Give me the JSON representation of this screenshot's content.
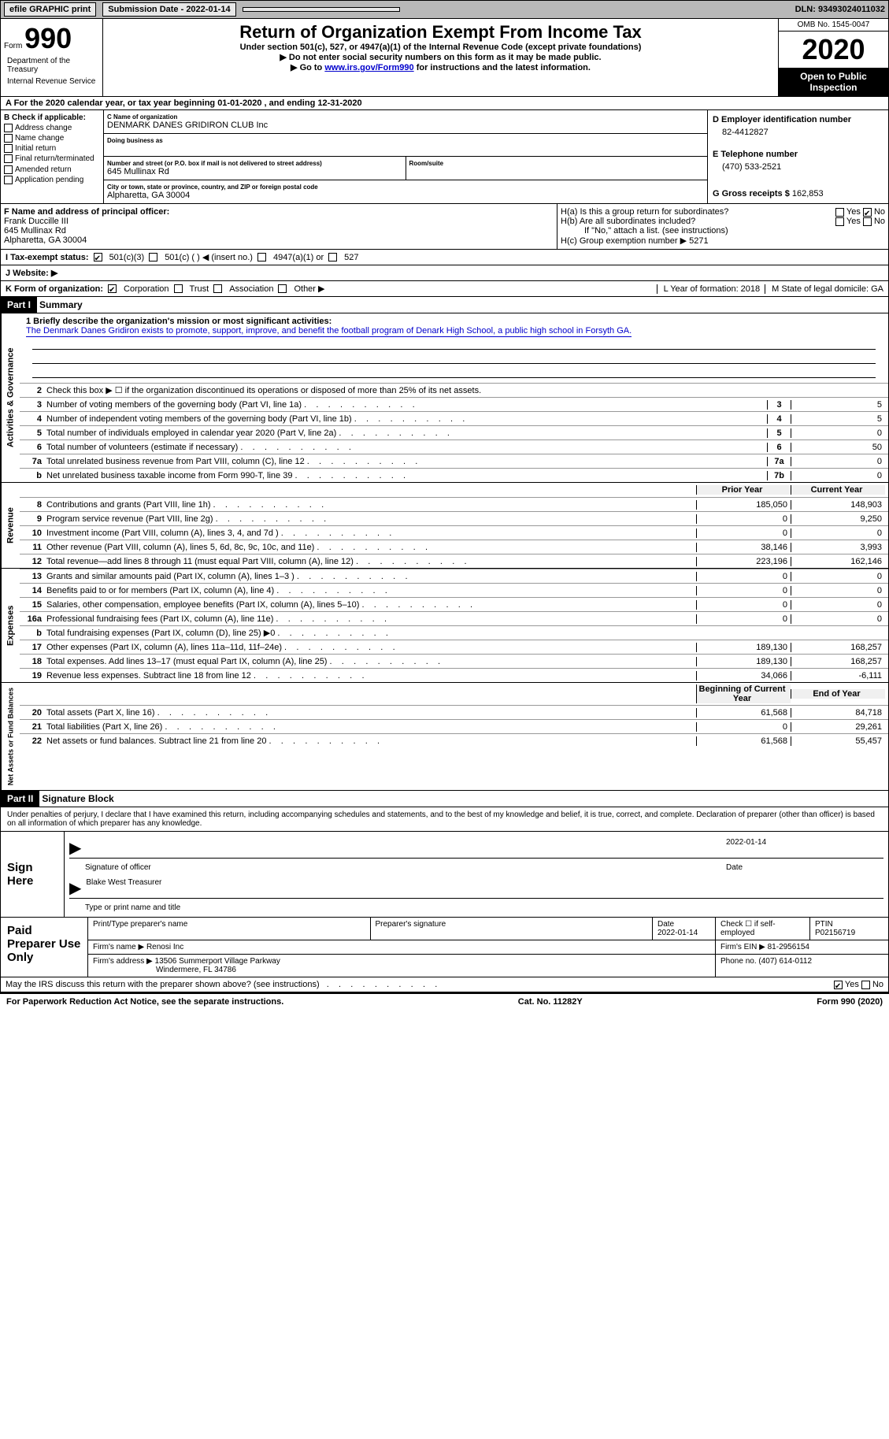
{
  "top": {
    "efile": "efile GRAPHIC print",
    "submission": "Submission Date - 2022-01-14",
    "dln": "DLN: 93493024011032"
  },
  "header": {
    "form_label": "Form",
    "form_number": "990",
    "title": "Return of Organization Exempt From Income Tax",
    "sub1": "Under section 501(c), 527, or 4947(a)(1) of the Internal Revenue Code (except private foundations)",
    "sub2": "▶ Do not enter social security numbers on this form as it may be made public.",
    "sub3_pre": "▶ Go to ",
    "sub3_link": "www.irs.gov/Form990",
    "sub3_post": " for instructions and the latest information.",
    "omb": "OMB No. 1545-0047",
    "year": "2020",
    "inspection": "Open to Public Inspection",
    "dept1": "Department of the Treasury",
    "dept2": "Internal Revenue Service"
  },
  "rowA": "A For the 2020 calendar year, or tax year beginning 01-01-2020    , and ending 12-31-2020",
  "boxB": {
    "label": "B Check if applicable:",
    "items": [
      "Address change",
      "Name change",
      "Initial return",
      "Final return/terminated",
      "Amended return",
      "Application pending"
    ]
  },
  "boxC": {
    "name_label": "C Name of organization",
    "name": "DENMARK DANES GRIDIRON CLUB Inc",
    "dba_label": "Doing business as",
    "dba": "",
    "street_label": "Number and street (or P.O. box if mail is not delivered to street address)",
    "room_label": "Room/suite",
    "street": "645 Mullinax Rd",
    "city_label": "City or town, state or province, country, and ZIP or foreign postal code",
    "city": "Alpharetta, GA  30004"
  },
  "boxD": {
    "label": "D Employer identification number",
    "val": "82-4412827"
  },
  "boxE": {
    "label": "E Telephone number",
    "val": "(470) 533-2521"
  },
  "boxG": {
    "label": "G Gross receipts $",
    "val": "162,853"
  },
  "boxF": {
    "label": "F  Name and address of principal officer:",
    "name": "Frank Duccille III",
    "street": "645 Mullinax Rd",
    "city": "Alpharetta, GA  30004"
  },
  "boxH": {
    "a": "H(a)  Is this a group return for subordinates?",
    "b": "H(b)  Are all subordinates included?",
    "b_note": "If \"No,\" attach a list. (see instructions)",
    "c": "H(c)  Group exemption number ▶   5271",
    "yes": "Yes",
    "no": "No"
  },
  "rowI": {
    "label": "I   Tax-exempt status:",
    "opts": [
      "501(c)(3)",
      "501(c) (  ) ◀ (insert no.)",
      "4947(a)(1) or",
      "527"
    ]
  },
  "rowJ": "J   Website: ▶",
  "rowK": {
    "label": "K Form of organization:",
    "opts": [
      "Corporation",
      "Trust",
      "Association",
      "Other ▶"
    ]
  },
  "rowL": "L Year of formation: 2018",
  "rowM": "M State of legal domicile: GA",
  "part1": {
    "header": "Part I",
    "title": "Summary"
  },
  "summary": {
    "line1_label": "1  Briefly describe the organization's mission or most significant activities:",
    "line1_text": "The Denmark Danes Gridiron exists to promote, support, improve, and benefit the football program of Denark High School, a public high school in Forsyth GA.",
    "line2": "Check this box ▶ ☐  if the organization discontinued its operations or disposed of more than 25% of its net assets.",
    "rows_gov": [
      {
        "n": "3",
        "t": "Number of voting members of the governing body (Part VI, line 1a)",
        "box": "3",
        "v": "5"
      },
      {
        "n": "4",
        "t": "Number of independent voting members of the governing body (Part VI, line 1b)",
        "box": "4",
        "v": "5"
      },
      {
        "n": "5",
        "t": "Total number of individuals employed in calendar year 2020 (Part V, line 2a)",
        "box": "5",
        "v": "0"
      },
      {
        "n": "6",
        "t": "Total number of volunteers (estimate if necessary)",
        "box": "6",
        "v": "50"
      },
      {
        "n": "7a",
        "t": "Total unrelated business revenue from Part VIII, column (C), line 12",
        "box": "7a",
        "v": "0"
      },
      {
        "n": "b",
        "t": "Net unrelated business taxable income from Form 990-T, line 39",
        "box": "7b",
        "v": "0"
      }
    ],
    "col_prior": "Prior Year",
    "col_current": "Current Year",
    "col_begin": "Beginning of Current Year",
    "col_end": "End of Year",
    "rows_rev": [
      {
        "n": "8",
        "t": "Contributions and grants (Part VIII, line 1h)",
        "p": "185,050",
        "c": "148,903"
      },
      {
        "n": "9",
        "t": "Program service revenue (Part VIII, line 2g)",
        "p": "0",
        "c": "9,250"
      },
      {
        "n": "10",
        "t": "Investment income (Part VIII, column (A), lines 3, 4, and 7d )",
        "p": "0",
        "c": "0"
      },
      {
        "n": "11",
        "t": "Other revenue (Part VIII, column (A), lines 5, 6d, 8c, 9c, 10c, and 11e)",
        "p": "38,146",
        "c": "3,993"
      },
      {
        "n": "12",
        "t": "Total revenue—add lines 8 through 11 (must equal Part VIII, column (A), line 12)",
        "p": "223,196",
        "c": "162,146"
      }
    ],
    "rows_exp": [
      {
        "n": "13",
        "t": "Grants and similar amounts paid (Part IX, column (A), lines 1–3 )",
        "p": "0",
        "c": "0"
      },
      {
        "n": "14",
        "t": "Benefits paid to or for members (Part IX, column (A), line 4)",
        "p": "0",
        "c": "0"
      },
      {
        "n": "15",
        "t": "Salaries, other compensation, employee benefits (Part IX, column (A), lines 5–10)",
        "p": "0",
        "c": "0"
      },
      {
        "n": "16a",
        "t": "Professional fundraising fees (Part IX, column (A), line 11e)",
        "p": "0",
        "c": "0"
      },
      {
        "n": "b",
        "t": "Total fundraising expenses (Part IX, column (D), line 25) ▶0",
        "p": "",
        "c": "",
        "shaded": true
      },
      {
        "n": "17",
        "t": "Other expenses (Part IX, column (A), lines 11a–11d, 11f–24e)",
        "p": "189,130",
        "c": "168,257"
      },
      {
        "n": "18",
        "t": "Total expenses. Add lines 13–17 (must equal Part IX, column (A), line 25)",
        "p": "189,130",
        "c": "168,257"
      },
      {
        "n": "19",
        "t": "Revenue less expenses. Subtract line 18 from line 12",
        "p": "34,066",
        "c": "-6,111"
      }
    ],
    "rows_net": [
      {
        "n": "20",
        "t": "Total assets (Part X, line 16)",
        "p": "61,568",
        "c": "84,718"
      },
      {
        "n": "21",
        "t": "Total liabilities (Part X, line 26)",
        "p": "0",
        "c": "29,261"
      },
      {
        "n": "22",
        "t": "Net assets or fund balances. Subtract line 21 from line 20",
        "p": "61,568",
        "c": "55,457"
      }
    ],
    "tab_gov": "Activities & Governance",
    "tab_rev": "Revenue",
    "tab_exp": "Expenses",
    "tab_net": "Net Assets or Fund Balances"
  },
  "part2": {
    "header": "Part II",
    "title": "Signature Block"
  },
  "sig": {
    "declare": "Under penalties of perjury, I declare that I have examined this return, including accompanying schedules and statements, and to the best of my knowledge and belief, it is true, correct, and complete. Declaration of preparer (other than officer) is based on all information of which preparer has any knowledge.",
    "sign_here": "Sign Here",
    "sig_officer": "Signature of officer",
    "sig_date": "2022-01-14",
    "date_label": "Date",
    "officer_name": "Blake West Treasurer",
    "officer_label": "Type or print name and title"
  },
  "prep": {
    "title": "Paid Preparer Use Only",
    "h_name": "Print/Type preparer's name",
    "h_sig": "Preparer's signature",
    "h_date": "Date",
    "date": "2022-01-14",
    "h_check": "Check ☐ if self-employed",
    "h_ptin": "PTIN",
    "ptin": "P02156719",
    "firm_label": "Firm's name    ▶",
    "firm": "Renosi Inc",
    "ein_label": "Firm's EIN ▶",
    "ein": "81-2956154",
    "addr_label": "Firm's address ▶",
    "addr1": "13506 Summerport Village Parkway",
    "addr2": "Windermere, FL  34786",
    "phone_label": "Phone no.",
    "phone": "(407) 614-0112"
  },
  "discuss": "May the IRS discuss this return with the preparer shown above? (see instructions)",
  "footer": {
    "left": "For Paperwork Reduction Act Notice, see the separate instructions.",
    "mid": "Cat. No. 11282Y",
    "right": "Form 990 (2020)"
  }
}
